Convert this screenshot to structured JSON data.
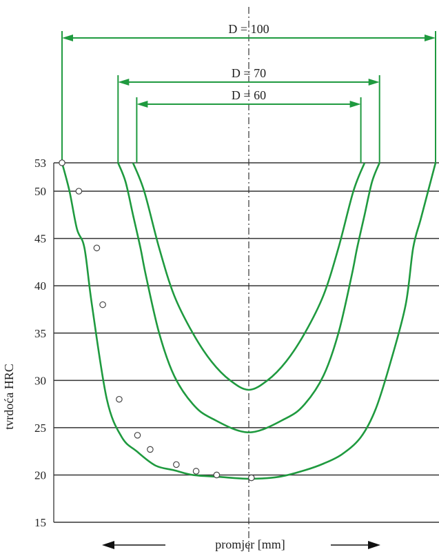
{
  "colors": {
    "curve": "#1f9a3f",
    "grid": "#333333",
    "text": "#222222",
    "marker_fill": "#ffffff"
  },
  "chart_data": {
    "type": "line",
    "ylabel": "tvrdoća HRC",
    "xlabel": "promjer [mm]",
    "yticks": [
      53,
      50,
      45,
      40,
      35,
      30,
      25,
      20,
      15
    ],
    "ylim": [
      15,
      53
    ],
    "grid": "horizontal lines at each y tick",
    "x_range": [
      -50,
      50
    ],
    "axis_arrows": "left and right arrows around x label",
    "series": [
      {
        "name": "D = 100",
        "diameter": 100,
        "x": [
          -50,
          -48,
          -46,
          -44,
          -42,
          -38,
          -34,
          -30,
          -25,
          -20,
          -15,
          -8,
          0,
          8,
          15,
          20,
          25,
          30,
          34,
          38,
          42,
          44,
          46,
          48,
          50
        ],
        "y": [
          53,
          50,
          46,
          44,
          38,
          28,
          24,
          22.5,
          21,
          20.5,
          20,
          19.8,
          19.6,
          19.8,
          20.5,
          21.2,
          22.2,
          24,
          27,
          32,
          38,
          44,
          47,
          50,
          53
        ],
        "markers": {
          "x": [
            -50,
            -45.5,
            -40.7,
            -39.1,
            -34.7,
            -29.8,
            -26.4,
            -19.4,
            -14.1,
            -8.6,
            0.7
          ],
          "y": [
            53,
            50,
            44,
            38,
            28,
            24.2,
            22.7,
            21.1,
            20.4,
            20,
            19.7
          ]
        }
      },
      {
        "name": "D = 70",
        "diameter": 70,
        "x": [
          -35,
          -33,
          -31,
          -29,
          -27.5,
          -24,
          -20,
          -15,
          -10,
          0,
          10,
          15,
          20,
          24,
          27.5,
          29,
          31,
          33,
          35
        ],
        "y": [
          53,
          51,
          47.5,
          44,
          41,
          35,
          30.5,
          27.5,
          26,
          24.5,
          26,
          27.5,
          30.5,
          35,
          41,
          44,
          47.5,
          51,
          53
        ],
        "markers": {
          "x": [],
          "y": []
        }
      },
      {
        "name": "D = 60",
        "diameter": 60,
        "x": [
          -31,
          -28,
          -24,
          -20,
          -15,
          -10,
          -5,
          0,
          5,
          10,
          15,
          20,
          24,
          28,
          31
        ],
        "y": [
          53,
          50,
          44,
          39,
          35,
          32,
          30,
          29,
          30,
          32,
          35,
          39,
          44,
          50,
          53
        ],
        "markers": {
          "x": [],
          "y": []
        }
      }
    ]
  }
}
